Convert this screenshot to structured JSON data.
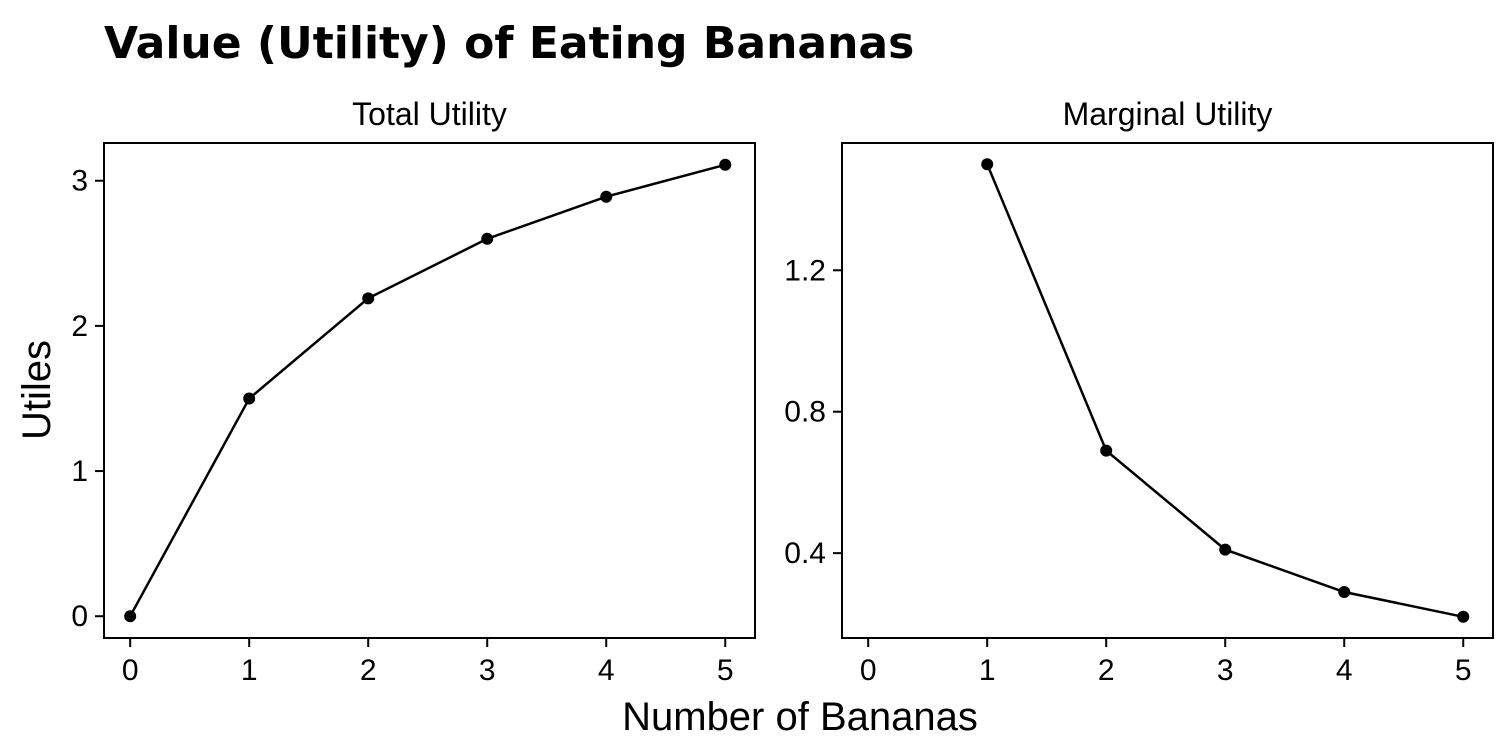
{
  "chart_data": {
    "title": "Value (Utility) of Eating Bananas",
    "xlabel": "Number of Bananas",
    "ylabel": "Utiles",
    "panels": [
      {
        "type": "line",
        "title": "Total Utility",
        "x": [
          0,
          1,
          2,
          3,
          4,
          5
        ],
        "y": [
          0,
          1.5,
          2.19,
          2.6,
          2.89,
          3.11
        ],
        "xlim": [
          -0.22,
          5.25
        ],
        "ylim": [
          -0.15,
          3.26
        ],
        "xticks": [
          0,
          1,
          2,
          3,
          4,
          5
        ],
        "yticks": [
          0,
          1,
          2,
          3
        ]
      },
      {
        "type": "line",
        "title": "Marginal Utility",
        "x": [
          1,
          2,
          3,
          4,
          5
        ],
        "y": [
          1.5,
          0.69,
          0.41,
          0.29,
          0.22
        ],
        "xlim": [
          -0.22,
          5.25
        ],
        "ylim": [
          0.16,
          1.56
        ],
        "xticks": [
          0,
          1,
          2,
          3,
          4,
          5
        ],
        "yticks": [
          0.4,
          0.8,
          1.2
        ]
      }
    ]
  }
}
